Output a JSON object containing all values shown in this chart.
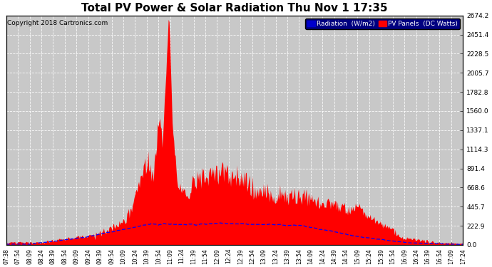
{
  "title": "Total PV Power & Solar Radiation Thu Nov 1 17:35",
  "copyright": "Copyright 2018 Cartronics.com",
  "legend_radiation": "Radiation  (W/m2)",
  "legend_pv": "PV Panels  (DC Watts)",
  "yticks": [
    0.0,
    222.9,
    445.7,
    668.6,
    891.4,
    1114.3,
    1337.1,
    1560.0,
    1782.8,
    2005.7,
    2228.5,
    2451.4,
    2674.2
  ],
  "ymax": 2674.2,
  "bg_color": "#c8c8c8",
  "plot_bg_color": "#c8c8c8",
  "grid_color": "#ffffff",
  "red_fill_color": "#ff0000",
  "blue_line_color": "#0000ff",
  "title_color": "#000000",
  "x_tick_labels": [
    "07:38",
    "07:54",
    "08:09",
    "08:24",
    "08:39",
    "08:54",
    "09:09",
    "09:24",
    "09:39",
    "09:54",
    "10:09",
    "10:24",
    "10:39",
    "10:54",
    "11:09",
    "11:24",
    "11:39",
    "11:54",
    "12:09",
    "12:24",
    "12:39",
    "12:54",
    "13:09",
    "13:24",
    "13:39",
    "13:54",
    "14:09",
    "14:24",
    "14:39",
    "14:54",
    "15:09",
    "15:24",
    "15:39",
    "15:54",
    "16:09",
    "16:24",
    "16:39",
    "16:54",
    "17:09",
    "17:24"
  ],
  "title_fontsize": 11,
  "copyright_fontsize": 6.5,
  "tick_fontsize": 5.5,
  "legend_fontsize": 6.5,
  "yright_tick_fontsize": 6.5
}
